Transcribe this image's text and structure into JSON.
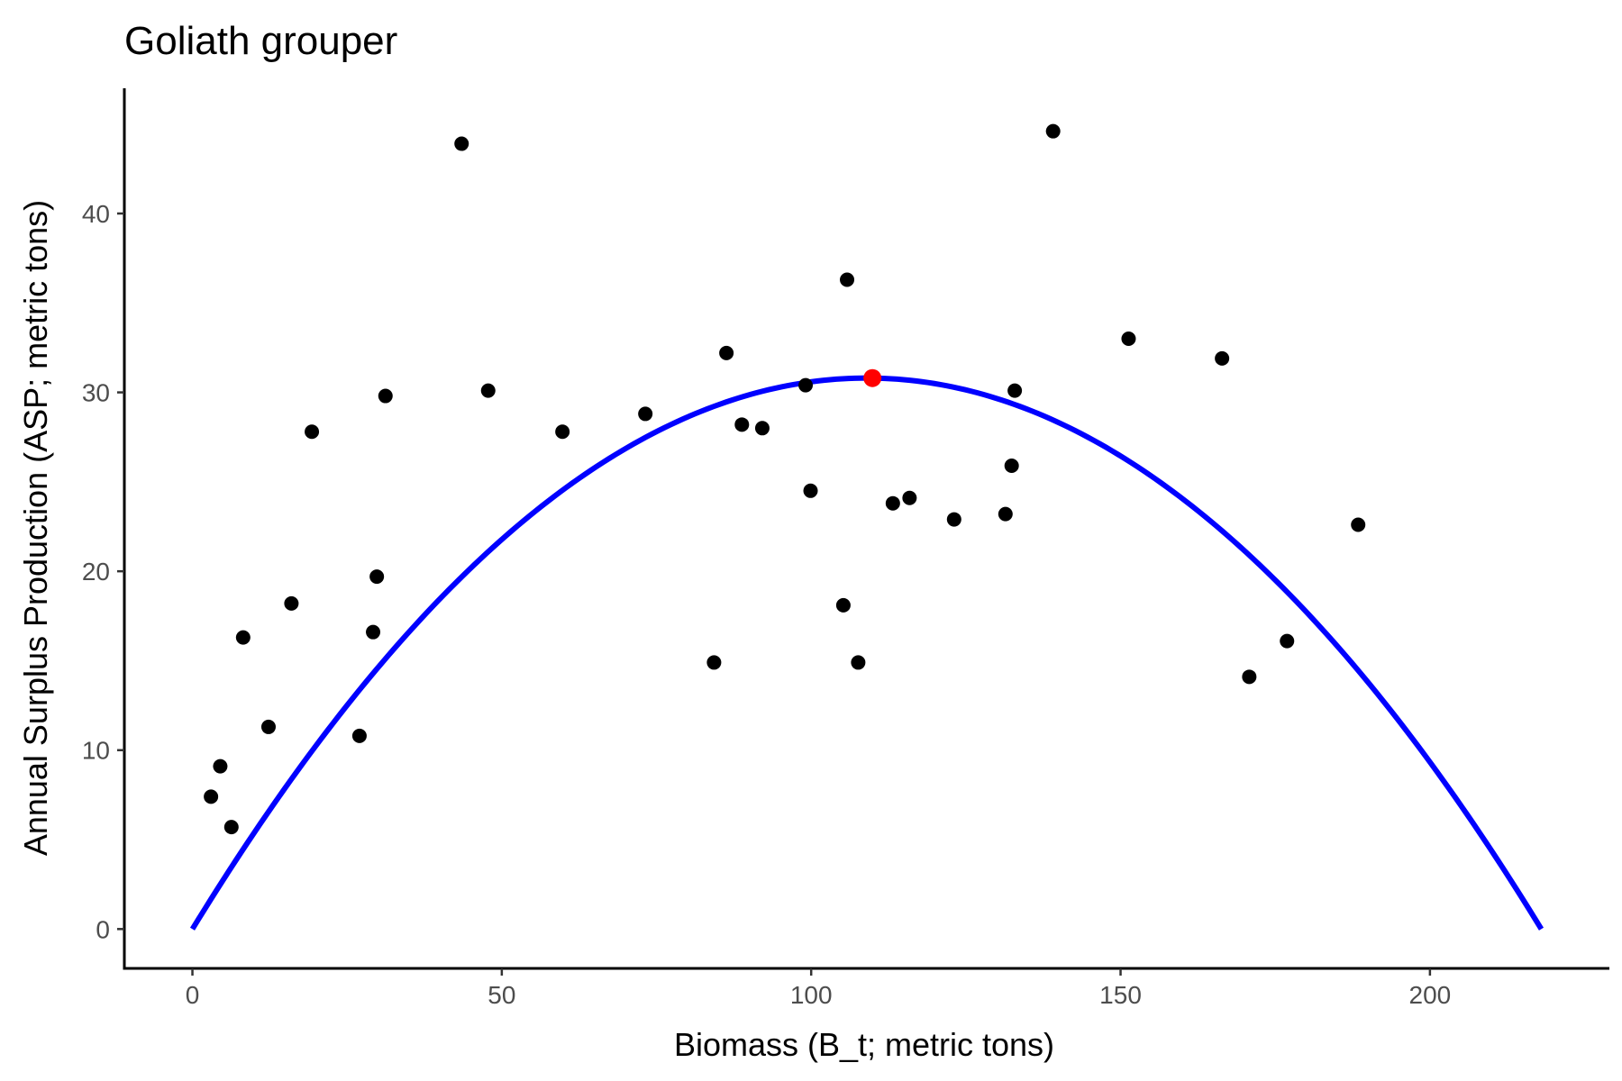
{
  "chart_data": {
    "type": "scatter",
    "title": "Goliath grouper",
    "xlabel": "Biomass (B_t; metric tons)",
    "ylabel": "Annual Surplus Production (ASP; metric tons)",
    "xlim": [
      -11,
      229
    ],
    "ylim": [
      -2.2,
      47
    ],
    "x_ticks": [
      0,
      50,
      100,
      150,
      200
    ],
    "y_ticks": [
      0,
      10,
      20,
      30,
      40
    ],
    "grid": false,
    "legend": "none",
    "points": {
      "color": "#000000",
      "x": [
        3,
        4.5,
        6.3,
        8.2,
        12.3,
        16,
        19.3,
        27,
        29.2,
        29.8,
        31.2,
        43.5,
        47.8,
        59.8,
        73.2,
        84.3,
        86.3,
        88.8,
        92.1,
        99.1,
        99.9,
        105.2,
        105.8,
        107.6,
        113.2,
        115.9,
        123.1,
        131.4,
        132.4,
        132.9,
        139.1,
        151.3,
        166.4,
        170.8,
        176.9,
        188.4
      ],
      "y": [
        7.4,
        9.1,
        5.7,
        16.3,
        11.3,
        18.2,
        27.8,
        10.8,
        16.6,
        19.7,
        29.8,
        43.9,
        30.1,
        27.8,
        28.8,
        14.9,
        32.2,
        28.2,
        28,
        30.4,
        24.5,
        18.1,
        36.3,
        14.9,
        23.8,
        24.1,
        22.9,
        23.2,
        25.9,
        30.1,
        44.6,
        33,
        31.9,
        14.1,
        16.1,
        22.6
      ]
    },
    "fit_curve": {
      "type": "parabola",
      "color": "#0000ff",
      "x_min": 0,
      "x_max": 218,
      "max_x": 109.9,
      "max_y": 30.8
    },
    "highlight_point": {
      "x": 109.9,
      "y": 30.8,
      "color": "#ff0000"
    }
  }
}
